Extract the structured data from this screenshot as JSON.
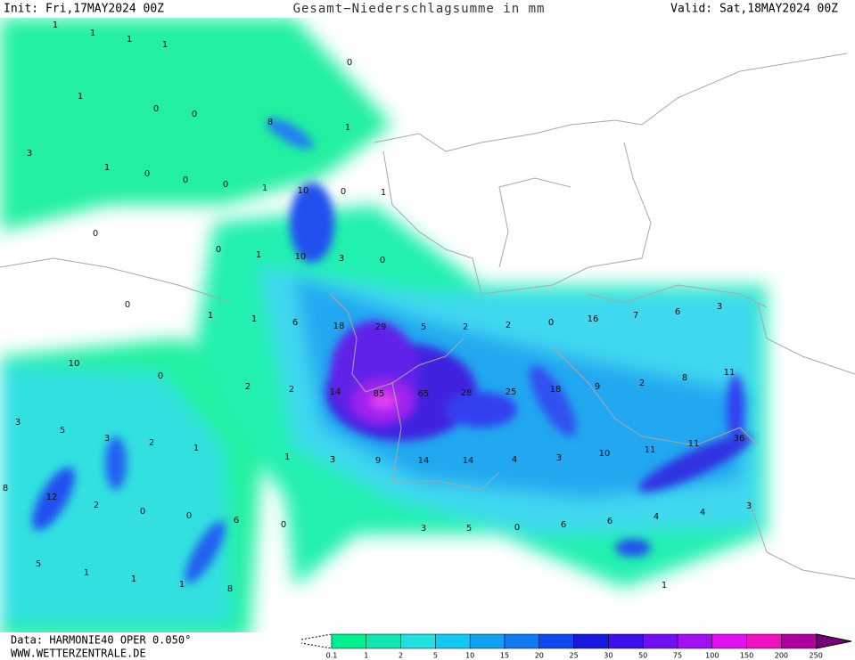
{
  "header": {
    "init": "Init: Fri,17MAY2024 00Z",
    "title": "Gesamt−Niederschlagsumme in mm",
    "valid": "Valid: Sat,18MAY2024 00Z"
  },
  "footer": {
    "data": "Data: HARMONIE40 OPER 0.050°",
    "website": "WWW.WETTERZENTRALE.DE"
  },
  "legend": {
    "labels": [
      "0.1",
      "1",
      "2",
      "5",
      "10",
      "15",
      "20",
      "25",
      "30",
      "50",
      "75",
      "100",
      "150",
      "200",
      "250"
    ]
  },
  "map_labels": [
    "1",
    "1",
    "1",
    "1",
    "0",
    "1",
    "0",
    "0",
    "8",
    "1",
    "3",
    "1",
    "0",
    "0",
    "0",
    "1",
    "10",
    "0",
    "1",
    "0",
    "0",
    "1",
    "10",
    "3",
    "0",
    "0",
    "1",
    "1",
    "6",
    "18",
    "29",
    "5",
    "2",
    "2",
    "0",
    "16",
    "7",
    "6",
    "3",
    "10",
    "0",
    "2",
    "2",
    "14",
    "85",
    "65",
    "28",
    "25",
    "18",
    "9",
    "2",
    "8",
    "11",
    "3",
    "5",
    "3",
    "2",
    "1",
    "1",
    "3",
    "9",
    "14",
    "14",
    "4",
    "3",
    "10",
    "11",
    "11",
    "36",
    "8",
    "12",
    "2",
    "0",
    "0",
    "6",
    "0",
    "3",
    "5",
    "0",
    "6",
    "6",
    "4",
    "4",
    "3",
    "5",
    "1",
    "1",
    "1",
    "8",
    "1"
  ]
}
